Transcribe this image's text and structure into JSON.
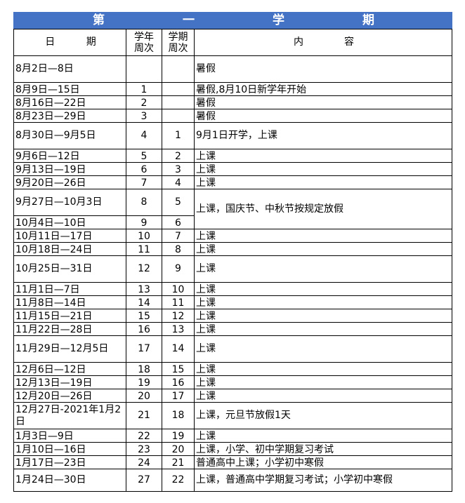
{
  "title_chars": [
    "第",
    "一",
    "学",
    "期"
  ],
  "headers": {
    "date": [
      "日",
      "期"
    ],
    "year_week": "学年周次",
    "term_week": "学期周次",
    "content": [
      "内",
      "容"
    ]
  },
  "header_fill": "#4472c4",
  "rows": [
    {
      "date": "8月2日—8日",
      "yw": "",
      "tw": "",
      "content": "暑假",
      "tall": true
    },
    {
      "date": "8月9日—15日",
      "yw": "1",
      "tw": "",
      "content": "暑假,8月10日新学年开始"
    },
    {
      "date": "8月16日—22日",
      "yw": "2",
      "tw": "",
      "content": "暑假"
    },
    {
      "date": "8月23日—29日",
      "yw": "3",
      "tw": "",
      "content": "暑假"
    },
    {
      "date": "8月30日—9月5日",
      "yw": "4",
      "tw": "1",
      "content": "9月1日开学，上课",
      "tall": true
    },
    {
      "date": "9月6日—12日",
      "yw": "5",
      "tw": "2",
      "content": "上课"
    },
    {
      "date": "9月13日—19日",
      "yw": "6",
      "tw": "3",
      "content": "上课"
    },
    {
      "date": "9月20日—26日",
      "yw": "7",
      "tw": "4",
      "content": "上课"
    },
    {
      "date": "9月27日—10月3日",
      "yw": "8",
      "tw": "5",
      "content": "上课，国庆节、中秋节按规定放假",
      "tall": true,
      "span": 2
    },
    {
      "date": "10月4日—10日",
      "yw": "9",
      "tw": "6",
      "merged": true
    },
    {
      "date": "10月11日—17日",
      "yw": "10",
      "tw": "7",
      "content": "上课"
    },
    {
      "date": "10月18日—24日",
      "yw": "11",
      "tw": "8",
      "content": "上课"
    },
    {
      "date": "10月25日—31日",
      "yw": "12",
      "tw": "9",
      "content": "上课",
      "tall": true
    },
    {
      "date": "11月1日—7日",
      "yw": "13",
      "tw": "10",
      "content": "上课"
    },
    {
      "date": "11月8日—14日",
      "yw": "14",
      "tw": "11",
      "content": "上课"
    },
    {
      "date": "11月15日—21日",
      "yw": "15",
      "tw": "12",
      "content": "上课"
    },
    {
      "date": "11月22日—28日",
      "yw": "16",
      "tw": "13",
      "content": "上课"
    },
    {
      "date": "11月29日—12月5日",
      "yw": "17",
      "tw": "14",
      "content": "上课",
      "tall": true
    },
    {
      "date": "12月6日—12日",
      "yw": "18",
      "tw": "15",
      "content": "上课"
    },
    {
      "date": "12月13日—19日",
      "yw": "19",
      "tw": "16",
      "content": "上课"
    },
    {
      "date": "12月20日—26日",
      "yw": "20",
      "tw": "17",
      "content": "上课"
    },
    {
      "date": "12月27日-2021年1月2日",
      "yw": "21",
      "tw": "18",
      "content": "上课，元旦节放假1天",
      "tall": true
    },
    {
      "date": "1月3日—9日",
      "yw": "22",
      "tw": "19",
      "content": "上课"
    },
    {
      "date": "1月10日—16日",
      "yw": "23",
      "tw": "20",
      "content": "上课，小学、初中学期复习考试"
    },
    {
      "date": "1月17日—23日",
      "yw": "24",
      "tw": "21",
      "content": "普通高中上课；小学初中寒假"
    },
    {
      "date": "1月24日—30日",
      "yw": "27",
      "tw": "22",
      "content": "上课，普通高中学期复习考试；小学初中寒假",
      "tall": true
    }
  ]
}
